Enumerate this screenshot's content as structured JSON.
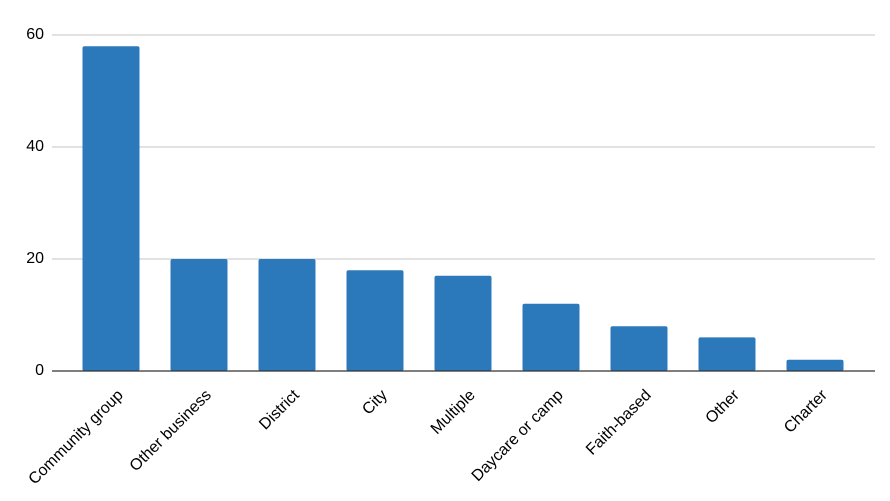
{
  "chart_data": {
    "type": "bar",
    "categories": [
      "Community group",
      "Other business",
      "District",
      "City",
      "Multiple",
      "Daycare or camp",
      "Faith-based",
      "Other",
      "Charter"
    ],
    "values": [
      58,
      20,
      20,
      18,
      17,
      12,
      8,
      6,
      2
    ],
    "color": "#2b78ba",
    "ylim": [
      0,
      60
    ],
    "yticks": [
      0,
      20,
      40,
      60
    ],
    "grid": true
  }
}
